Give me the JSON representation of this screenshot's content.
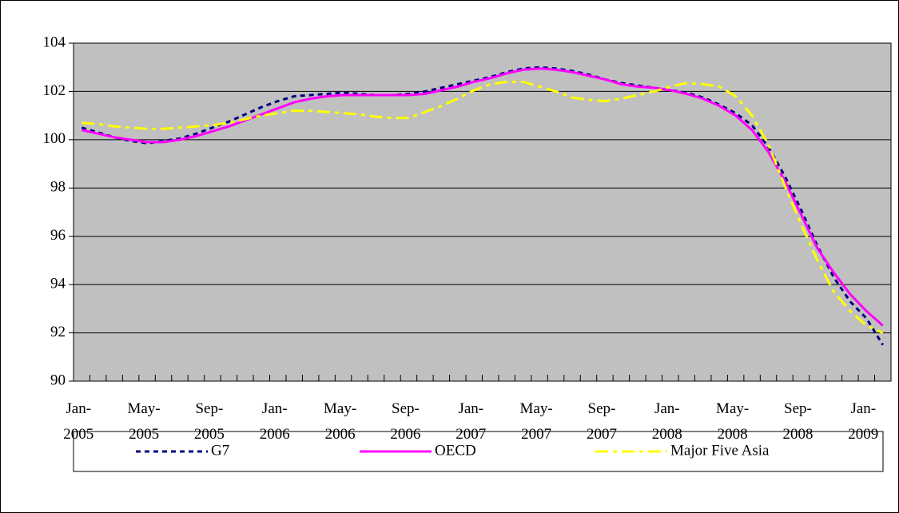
{
  "chart_data": {
    "type": "line",
    "categories": [
      "Jan-2005",
      null,
      null,
      null,
      "May-2005",
      null,
      null,
      null,
      "Sep-2005",
      null,
      null,
      null,
      "Jan-2006",
      null,
      null,
      null,
      "May-2006",
      null,
      null,
      null,
      "Sep-2006",
      null,
      null,
      null,
      "Jan-2007",
      null,
      null,
      null,
      "May-2007",
      null,
      null,
      null,
      "Sep-2007",
      null,
      null,
      null,
      "Jan-2008",
      null,
      null,
      null,
      "May-2008",
      null,
      null,
      null,
      "Sep-2008",
      null,
      null,
      null,
      "Jan-2009",
      null
    ],
    "series": [
      {
        "name": "G7",
        "color": "#000080",
        "dash": "6,5",
        "values": [
          100.5,
          100.3,
          100.1,
          99.95,
          99.85,
          99.95,
          100.05,
          100.25,
          100.5,
          100.75,
          101.05,
          101.35,
          101.6,
          101.8,
          101.85,
          101.9,
          101.95,
          101.9,
          101.85,
          101.85,
          101.9,
          102.0,
          102.15,
          102.3,
          102.45,
          102.6,
          102.8,
          102.95,
          103.0,
          102.95,
          102.85,
          102.7,
          102.5,
          102.35,
          102.25,
          102.15,
          102.05,
          101.95,
          101.75,
          101.45,
          101.1,
          100.6,
          99.7,
          98.5,
          97.1,
          95.6,
          94.3,
          93.3,
          92.6,
          91.5
        ]
      },
      {
        "name": "OECD",
        "color": "#ff00ff",
        "dash": "none",
        "values": [
          100.4,
          100.25,
          100.1,
          100.0,
          99.9,
          99.9,
          100.0,
          100.15,
          100.35,
          100.55,
          100.8,
          101.05,
          101.3,
          101.55,
          101.7,
          101.8,
          101.85,
          101.85,
          101.85,
          101.85,
          101.85,
          101.9,
          102.05,
          102.2,
          102.4,
          102.55,
          102.75,
          102.9,
          102.95,
          102.9,
          102.8,
          102.65,
          102.5,
          102.3,
          102.2,
          102.15,
          102.05,
          101.9,
          101.7,
          101.4,
          101.0,
          100.4,
          99.5,
          98.3,
          96.9,
          95.5,
          94.5,
          93.6,
          92.9,
          92.3
        ]
      },
      {
        "name": "Major Five Asia",
        "color": "#ffff00",
        "dash": "16,6,5,6",
        "values": [
          100.7,
          100.65,
          100.55,
          100.5,
          100.45,
          100.45,
          100.5,
          100.55,
          100.6,
          100.7,
          100.85,
          101.0,
          101.1,
          101.2,
          101.2,
          101.15,
          101.1,
          101.05,
          100.95,
          100.9,
          100.9,
          101.15,
          101.4,
          101.7,
          102.05,
          102.3,
          102.4,
          102.4,
          102.2,
          102.0,
          101.75,
          101.65,
          101.6,
          101.7,
          101.85,
          102.0,
          102.2,
          102.35,
          102.3,
          102.2,
          101.8,
          101.0,
          99.8,
          98.1,
          96.5,
          95.0,
          93.7,
          92.9,
          92.3,
          92.0
        ]
      }
    ],
    "ylim": [
      90,
      104
    ],
    "yticks": [
      90,
      92,
      94,
      96,
      98,
      100,
      102,
      104
    ],
    "grid": true,
    "legend": "bottom"
  }
}
